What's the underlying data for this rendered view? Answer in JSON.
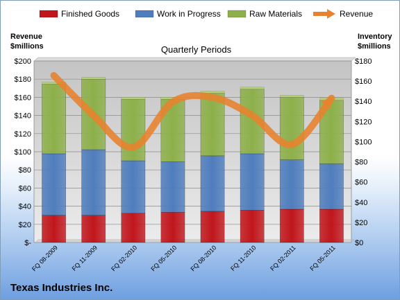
{
  "chart_data": {
    "type": "bar",
    "stacked": true,
    "title": "Quarterly Periods",
    "categories": [
      "FQ 08-2009",
      "FQ 11-2009",
      "FQ 02-2010",
      "FQ 05-2010",
      "FQ 08-2010",
      "FQ 11-2010",
      "FQ 02-2011",
      "FQ 05-2011"
    ],
    "series": [
      {
        "name": "Finished Goods",
        "axis": "right",
        "color": "#c0161c",
        "values": [
          27,
          27,
          29,
          30,
          31,
          32,
          33,
          33
        ]
      },
      {
        "name": "Work in Progress",
        "axis": "right",
        "color": "#4f7dbd",
        "values": [
          61,
          65,
          52,
          50,
          55,
          56,
          49,
          45
        ]
      },
      {
        "name": "Raw Materials",
        "axis": "right",
        "color": "#8db04a",
        "values": [
          69,
          70,
          61,
          62,
          62,
          64,
          62,
          63
        ]
      }
    ],
    "line_series": {
      "name": "Revenue",
      "axis": "left",
      "color": "#e8822e",
      "values": [
        184,
        140,
        105,
        155,
        160,
        140,
        108,
        159
      ]
    },
    "left_axis": {
      "label": "Revenue\n$millions",
      "min": 0,
      "max": 200,
      "step": 20,
      "tick_labels": [
        "$-",
        "$20",
        "$40",
        "$60",
        "$80",
        "$100",
        "$120",
        "$140",
        "$160",
        "$180",
        "$200"
      ]
    },
    "right_axis": {
      "label": "Inventory\n$millions",
      "min": 0,
      "max": 180,
      "step": 20,
      "tick_labels": [
        "$0",
        "$20",
        "$40",
        "$60",
        "$80",
        "$100",
        "$120",
        "$140",
        "$160",
        "$180"
      ]
    },
    "grid": true,
    "legend_position": "top"
  },
  "legend": [
    {
      "label": "Finished Goods",
      "color": "#c0161c",
      "kind": "box"
    },
    {
      "label": "Work in Progress",
      "color": "#4f7dbd",
      "kind": "box"
    },
    {
      "label": "Raw Materials",
      "color": "#8db04a",
      "kind": "box"
    },
    {
      "label": "Revenue",
      "color": "#e8822e",
      "kind": "arrow"
    }
  ],
  "left_axis_title": [
    "Revenue",
    "$millions"
  ],
  "right_axis_title": [
    "Inventory",
    "$millions"
  ],
  "company_name": "Texas Industries Inc."
}
